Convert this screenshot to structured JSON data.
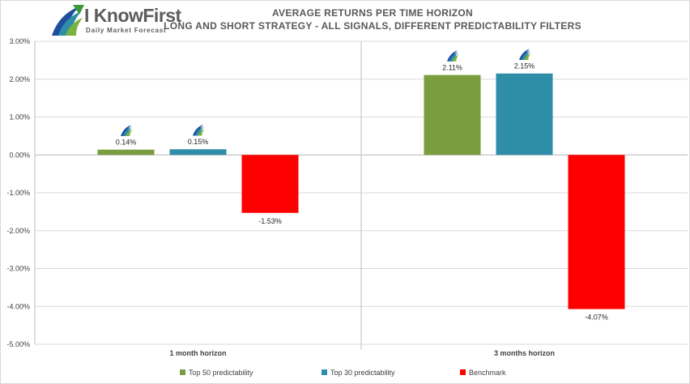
{
  "logo": {
    "name": "I KnowFirst",
    "tagline": "Daily Market Forecast"
  },
  "chart_data": {
    "type": "bar",
    "title": "AVERAGE RETURNS PER TIME HORIZON",
    "subtitle": "LONG AND SHORT STRATEGY - ALL SIGNALS, DIFFERENT PREDICTABILITY FILTERS",
    "categories": [
      "1 month horizon",
      "3 months horizon"
    ],
    "series": [
      {
        "name": "Top 50 predictability",
        "values": [
          0.14,
          2.11
        ],
        "labels": [
          "0.14%",
          "2.11%"
        ],
        "color": "#7a9e3f"
      },
      {
        "name": "Top 30 predictability",
        "values": [
          0.15,
          2.15
        ],
        "labels": [
          "0.15%",
          "2.15%"
        ],
        "color": "#2e8ea8"
      },
      {
        "name": "Benchmark",
        "values": [
          -1.53,
          -4.07
        ],
        "labels": [
          "-1.53%",
          "-4.07%"
        ],
        "color": "#ff0000"
      }
    ],
    "ylim": [
      -5,
      3
    ],
    "yticks": [
      "3.00%",
      "2.00%",
      "1.00%",
      "0.00%",
      "-1.00%",
      "-2.00%",
      "-3.00%",
      "-4.00%",
      "-5.00%"
    ],
    "grid": true,
    "legend_position": "bottom",
    "logo_marker_series": [
      "Top 50 predictability",
      "Top 30 predictability"
    ]
  }
}
